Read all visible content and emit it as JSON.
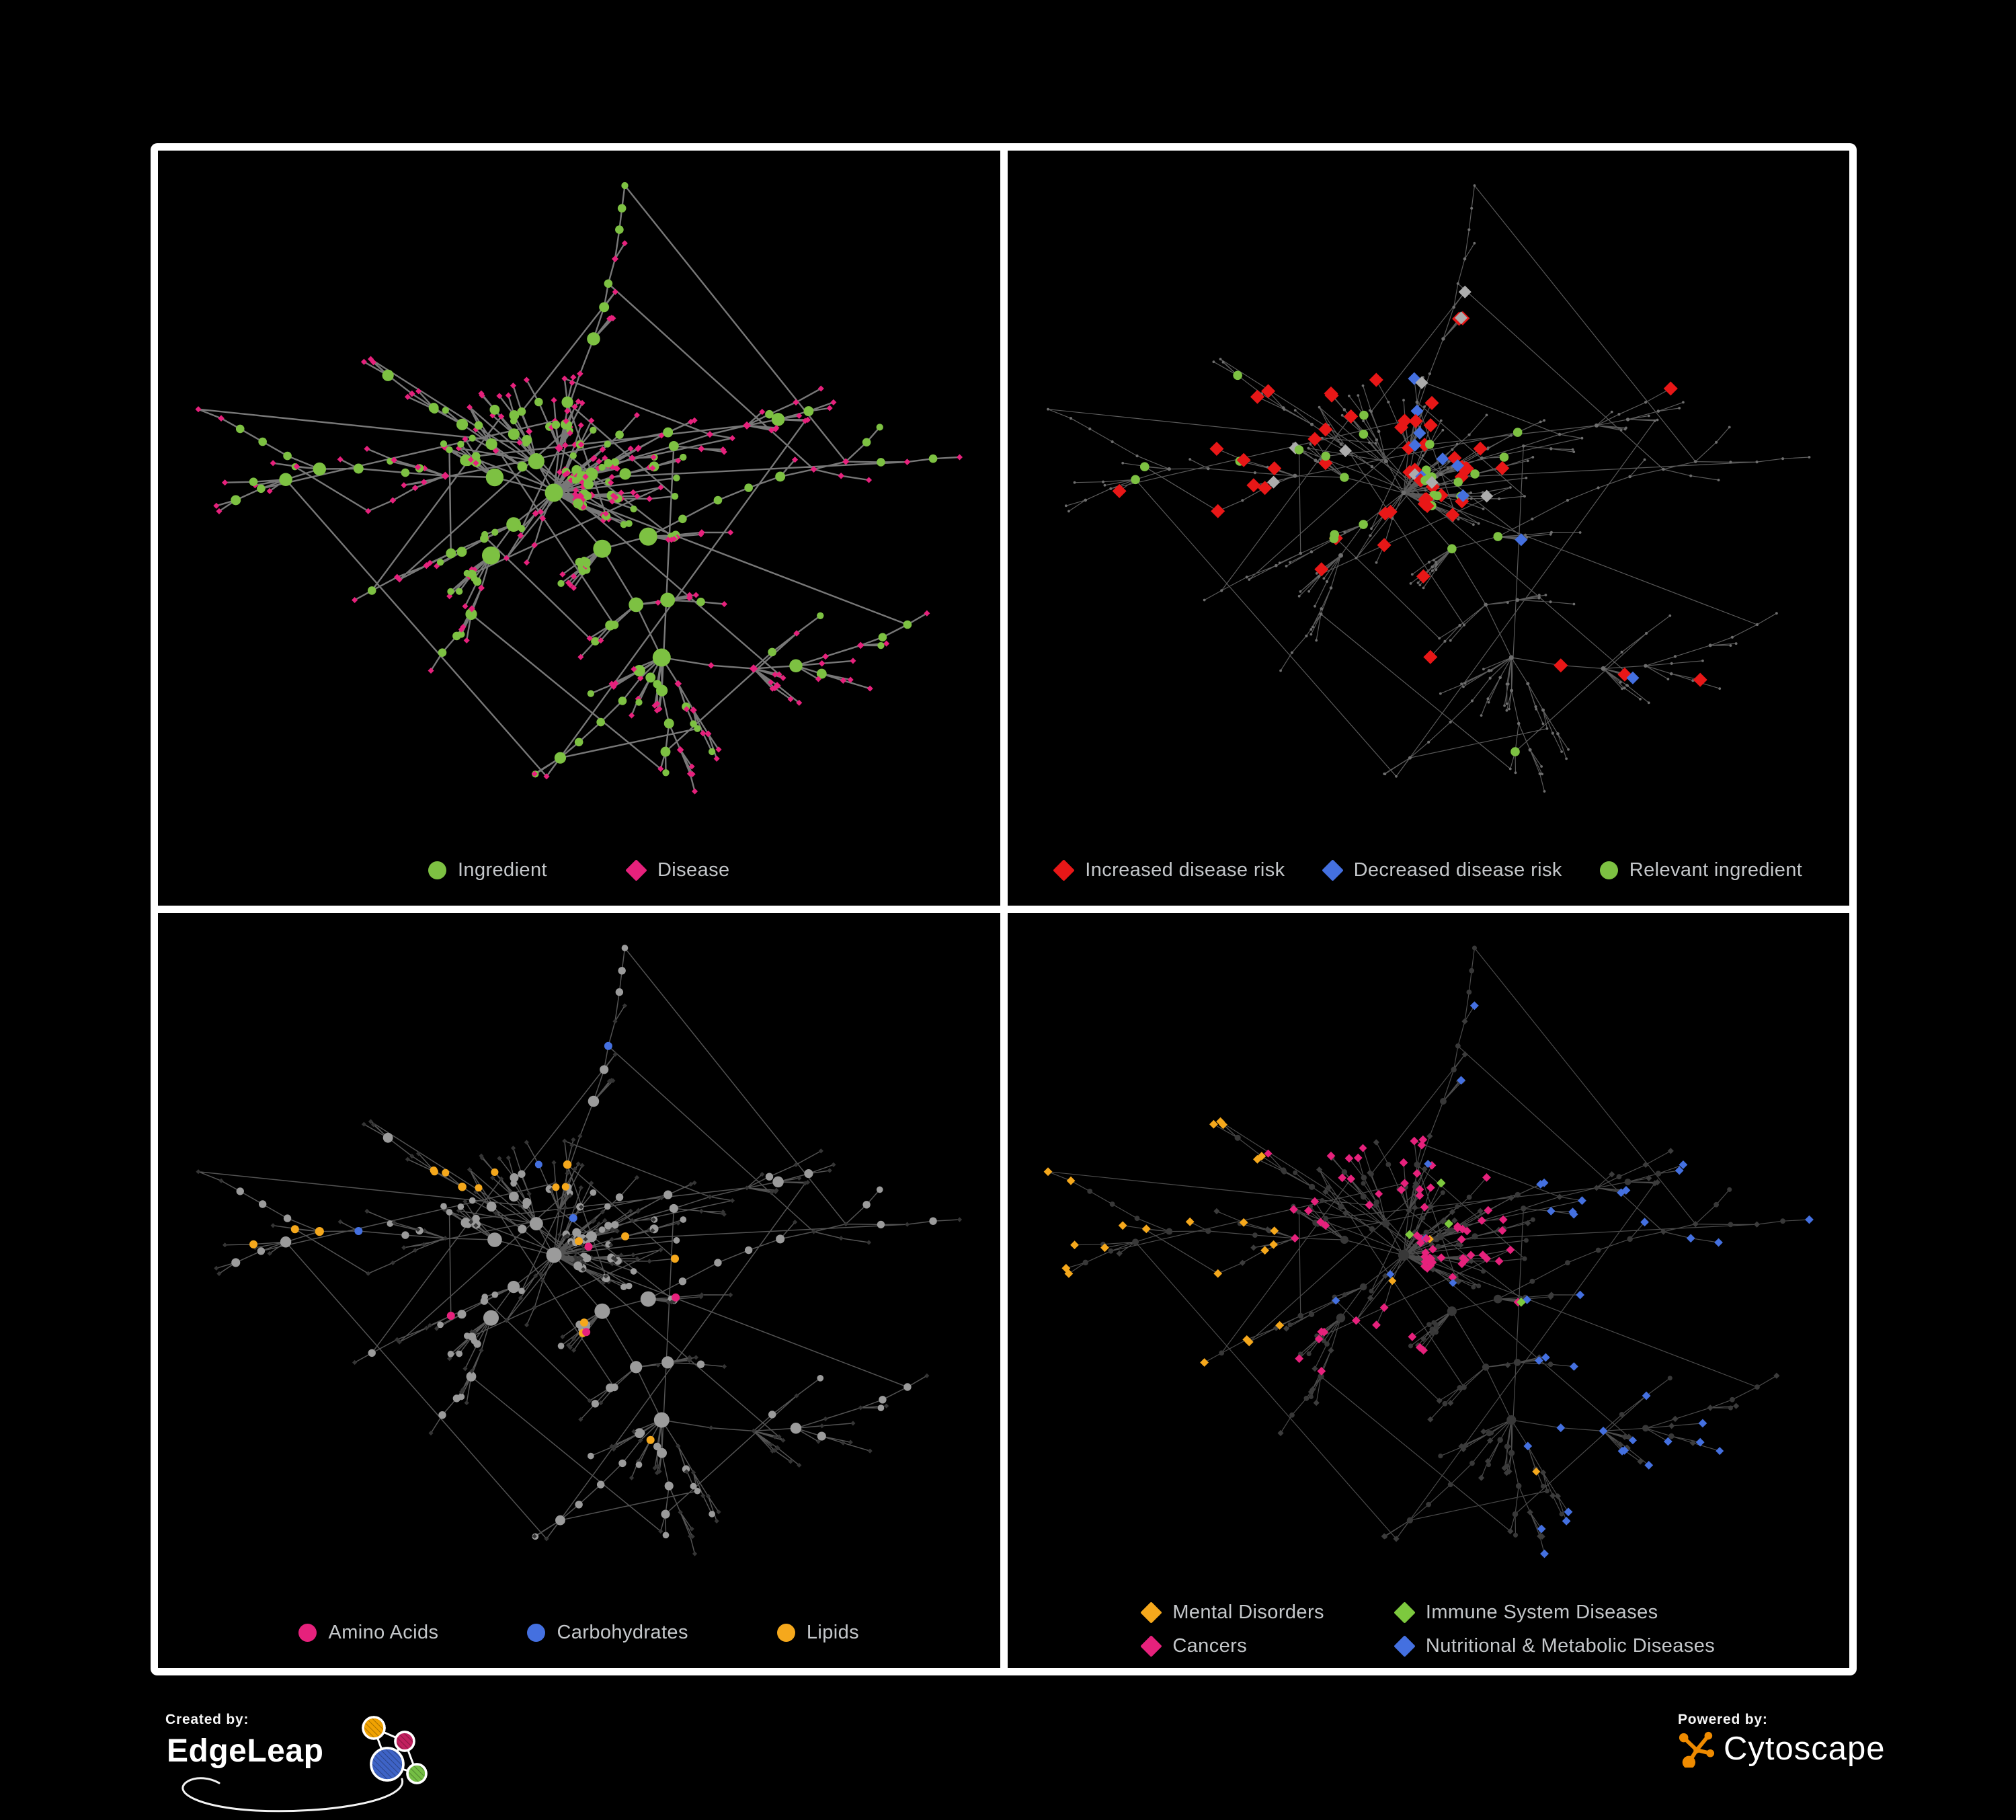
{
  "figure": {
    "background": "#000000",
    "frame_color": "#ffffff"
  },
  "colors": {
    "green": "#7DC142",
    "magenta": "#E6217C",
    "red": "#E81717",
    "blue": "#4470E0",
    "silver": "#ACACAC",
    "amber": "#F5A81C",
    "lime": "#7DC93E",
    "legend_text": "#C4C7CA",
    "edgeleap_orange": "#F0A202",
    "edgeleap_crimson": "#C2205F",
    "edgeleap_blue": "#3E63C6",
    "edgeleap_green": "#74BE44",
    "cytoscape_orange": "#EF8B00"
  },
  "network": {
    "seed": 1337,
    "node_count": 430,
    "extra_edges": 34,
    "len_base": 20,
    "len_k": 7,
    "len_jitter": 16,
    "spread": 1.25
  },
  "panels": [
    {
      "id": "ingredients-diseases",
      "mode": "overview",
      "edge": {
        "color": "#7E7E7E",
        "width": 2.4,
        "opacity": 0.95
      },
      "legend": [
        {
          "shape": "circle",
          "color": "#7DC142",
          "label": "Ingredient"
        },
        {
          "shape": "diamond",
          "color": "#E6217C",
          "label": "Disease"
        }
      ]
    },
    {
      "id": "disease-risk",
      "mode": "risk",
      "edge": {
        "color": "#6A6A6A",
        "width": 1.2,
        "opacity": 0.85
      },
      "legend": [
        {
          "shape": "diamond",
          "color": "#E81717",
          "label": "Increased disease risk"
        },
        {
          "shape": "diamond",
          "color": "#4470E0",
          "label": "Decreased disease risk"
        },
        {
          "shape": "circle",
          "color": "#7DC142",
          "label": "Relevant ingredient"
        }
      ]
    },
    {
      "id": "chemical-classes",
      "mode": "chem",
      "edge": {
        "color": "#8A8A8A",
        "width": 1.5,
        "opacity": 0.6
      },
      "legend": [
        {
          "shape": "circle",
          "color": "#E6217C",
          "label": "Amino Acids"
        },
        {
          "shape": "circle",
          "color": "#4470E0",
          "label": "Carbohydrates"
        },
        {
          "shape": "circle",
          "color": "#F5A81C",
          "label": "Lipids"
        }
      ]
    },
    {
      "id": "disease-classes",
      "mode": "dclass",
      "edge": {
        "color": "#7D7D7D",
        "width": 1.2,
        "opacity": 0.6
      },
      "legend": [
        {
          "shape": "diamond",
          "color": "#F5A81C",
          "label": "Mental Disorders"
        },
        {
          "shape": "diamond",
          "color": "#7DC93E",
          "label": "Immune System Diseases"
        },
        {
          "shape": "diamond",
          "color": "#E6217C",
          "label": "Cancers"
        },
        {
          "shape": "diamond",
          "color": "#4470E0",
          "label": "Nutritional & Metabolic Diseases"
        }
      ]
    }
  ],
  "branding": {
    "created_by": "Created by:",
    "edgeleap": "EdgeLeap",
    "powered_by": "Powered by:",
    "cytoscape": "Cytoscape"
  }
}
